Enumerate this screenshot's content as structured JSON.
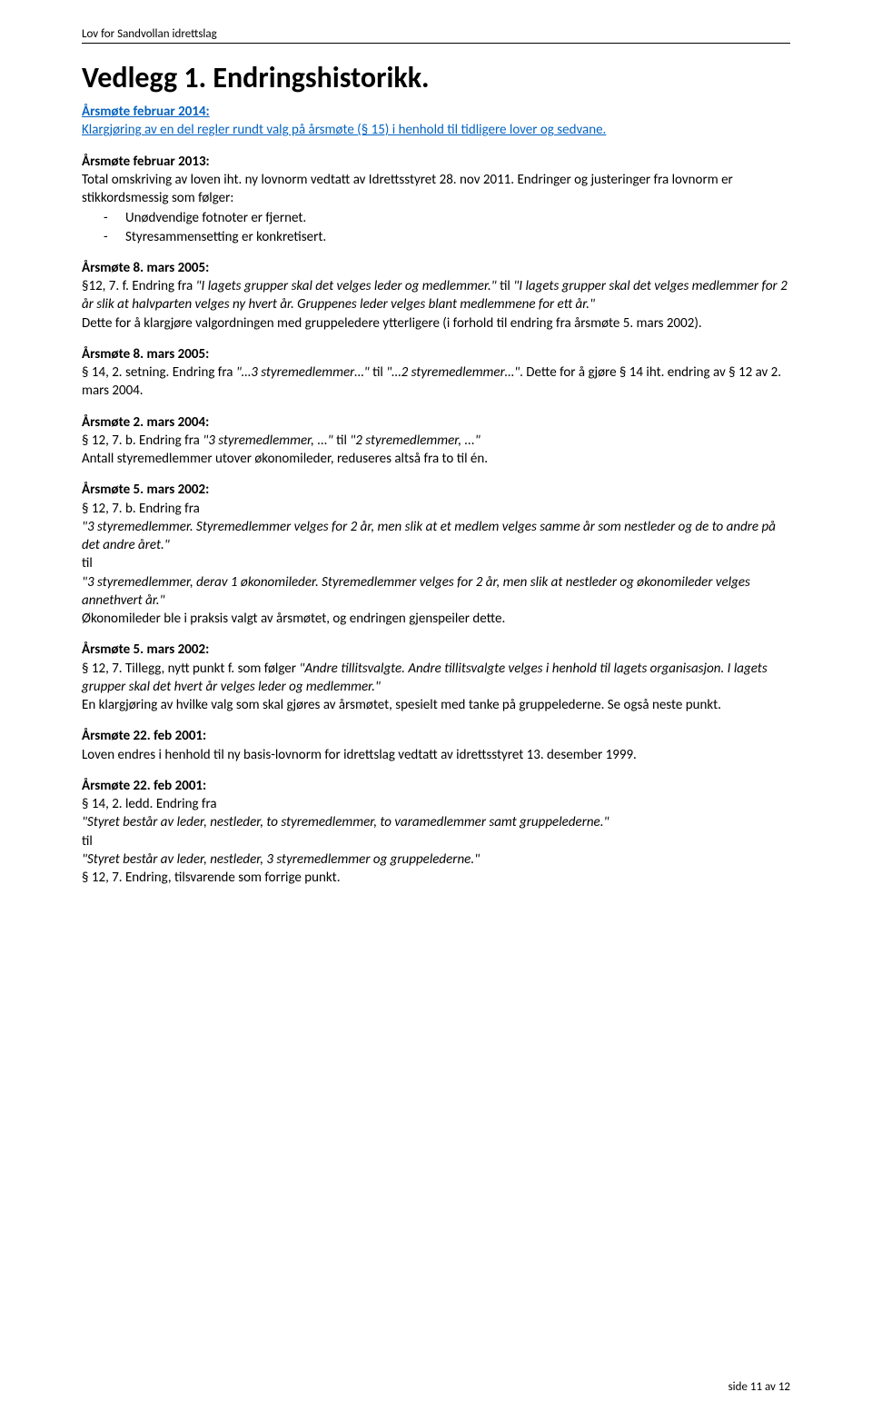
{
  "header": {
    "running_title": "Lov for Sandvollan idrettslag"
  },
  "title": "Vedlegg 1. Endringshistorikk.",
  "sections": [
    {
      "heading": "Årsmøte februar 2014:",
      "heading_style": "clarify-link"
    },
    {
      "heading": "Årsmøte februar 2013:"
    },
    {
      "heading": "Årsmøte 8. mars 2005:"
    },
    {
      "heading": "Årsmøte 8. mars 2005:"
    },
    {
      "heading": "Årsmøte 2. mars 2004:"
    },
    {
      "heading": "Årsmøte 5. mars 2002:"
    },
    {
      "heading": "Årsmøte 5. mars 2002:"
    },
    {
      "heading": "Årsmøte 22. feb 2001:"
    },
    {
      "heading": "Årsmøte 22. feb 2001:"
    }
  ],
  "s0": {
    "line1": "Klargjøring av en del regler rundt valg på årsmøte (§ 15) i henhold til tidligere lover og sedvane."
  },
  "s1": {
    "line1": "Total omskriving av loven iht. ny lovnorm vedtatt av Idrettsstyret 28. nov 2011. Endringer og justeringer fra lovnorm er stikkordsmessig som følger:",
    "bullet1": "Unødvendige fotnoter er fjernet.",
    "bullet2": "Styresammensetting er konkretisert."
  },
  "s2": {
    "pre1": "§12, 7. f. Endring fra ",
    "q1": "\"I lagets grupper skal det velges leder og medlemmer.\"",
    "mid1": " til ",
    "q2": "\"I lagets grupper skal det velges medlemmer for 2 år slik at halvparten velges ny hvert år. Gruppenes leder velges blant medlemmene for ett år.\"",
    "line2": "Dette for å klargjøre valgordningen med gruppeledere ytterligere (i forhold til endring fra årsmøte 5. mars 2002)."
  },
  "s3": {
    "pre1": "§ 14, 2. setning. Endring fra ",
    "q1": "\"…3 styremedlemmer…\"",
    "mid1": " til ",
    "q2": "\"…2 styremedlemmer…\"",
    "post1": ". Dette for å gjøre § 14 iht. endring av § 12 av 2. mars 2004."
  },
  "s4": {
    "pre1": "§ 12, 7. b. Endring fra ",
    "q1": "\"3 styremedlemmer, ...\"",
    "mid1": " til ",
    "q2": "\"2 styremedlemmer, ...\"",
    "line2": "Antall styremedlemmer utover økonomileder, reduseres altså fra to til én."
  },
  "s5": {
    "line1": "§ 12, 7. b. Endring fra",
    "q1": "\"3 styremedlemmer. Styremedlemmer velges for 2 år, men slik at et medlem velges samme år som nestleder og de to andre på det andre året.\"",
    "til": "til",
    "q2": "\"3 styremedlemmer, derav 1 økonomileder. Styremedlemmer velges for 2 år, men slik at nestleder og økonomileder velges annethvert år.\"",
    "line2": "Økonomileder ble i praksis valgt av årsmøtet, og endringen gjenspeiler dette."
  },
  "s6": {
    "pre1": "§ 12, 7. Tillegg, nytt punkt f. som følger ",
    "q1": "\"Andre tillitsvalgte. Andre tillitsvalgte velges i henhold til lagets organisasjon. I lagets grupper skal det hvert år velges leder og medlemmer.\"",
    "line2": "En klargjøring av hvilke valg som skal gjøres av årsmøtet, spesielt med tanke på gruppelederne. Se også neste punkt."
  },
  "s7": {
    "line1": "Loven endres i henhold til ny basis-lovnorm for idrettslag vedtatt av idrettsstyret 13. desember 1999."
  },
  "s8": {
    "line1": "§ 14, 2. ledd. Endring fra",
    "q1": "\"Styret består av leder, nestleder, to styremedlemmer, to varamedlemmer samt gruppelederne.\"",
    "til": "til",
    "q2": "\"Styret består av leder, nestleder, 3 styremedlemmer og gruppelederne.\"",
    "line2": "§ 12, 7. Endring, tilsvarende som forrige punkt."
  },
  "footer": {
    "text": "side 11 av 12"
  }
}
